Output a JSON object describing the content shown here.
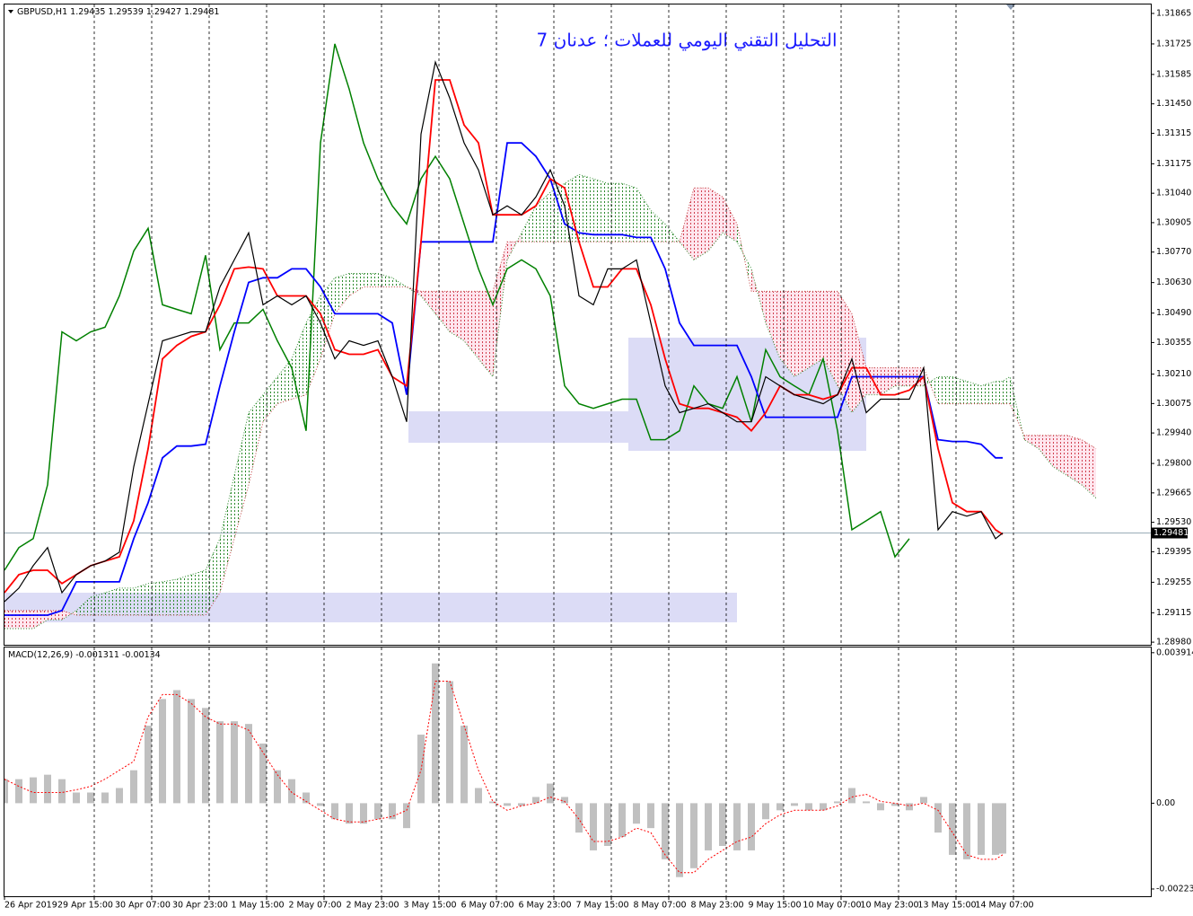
{
  "chart_data": [
    {
      "type": "ichimoku",
      "symbol": "GBPUSD,H1",
      "ohlc": [
        1.29435,
        1.29539,
        1.29427,
        1.29481
      ],
      "title": "التحليل التقني اليومي للعملات ؛ عدنان 7",
      "x": [
        0,
        4,
        8,
        12,
        16,
        20,
        24,
        28,
        32,
        36,
        40,
        44,
        48,
        52,
        56,
        60,
        64,
        68,
        72,
        76,
        80,
        84,
        88,
        92,
        96,
        100,
        104,
        108,
        112,
        116,
        120,
        124,
        128,
        132,
        136,
        140,
        144,
        148,
        152,
        156,
        160,
        164,
        168,
        172,
        176,
        180,
        184,
        188,
        192,
        196,
        200,
        204,
        208,
        212,
        216,
        220,
        224,
        228,
        232,
        236,
        240,
        244,
        248,
        252,
        256,
        260,
        264,
        268,
        272,
        276,
        278,
        280,
        284,
        288,
        292,
        296,
        300,
        304
      ],
      "ylim": [
        1.28968,
        1.31906
      ],
      "yticks": [
        1.31865,
        1.31725,
        1.31585,
        {
          "value": 1.3145,
          "label": "1.31450"
        },
        1.31315,
        1.31175,
        {
          "value": 1.3104,
          "label": "1.31040"
        },
        1.30905,
        {
          "value": 1.3077,
          "label": "1.30770"
        },
        {
          "value": 1.3063,
          "label": "1.30630"
        },
        {
          "value": 1.3049,
          "label": "1.30490"
        },
        1.30355,
        {
          "value": 1.3021,
          "label": "1.30210"
        },
        1.30075,
        {
          "value": 1.2994,
          "label": "1.29940"
        },
        {
          "value": 1.298,
          "label": "1.29800"
        },
        1.29665,
        {
          "value": 1.2953,
          "label": "1.29530"
        },
        1.29395,
        1.29255,
        1.29115,
        {
          "value": 1.2898,
          "label": "1.28980"
        }
      ],
      "grid": "x",
      "series": [
        {
          "kind": "price",
          "color": "#000000",
          "values": [
            1.29166,
            1.29228,
            1.29331,
            1.29414,
            1.29207,
            1.2929,
            1.29331,
            1.29352,
            1.29393,
            1.29785,
            1.30074,
            1.30363,
            1.30383,
            1.30404,
            1.30404,
            1.3061,
            1.30734,
            1.30858,
            1.30528,
            1.30569,
            1.30528,
            1.30569,
            1.30445,
            1.3028,
            1.30363,
            1.30342,
            1.30363,
            1.30198,
            1.29991,
            1.31312,
            1.31642,
            1.31477,
            1.31271,
            1.31147,
            1.30941,
            1.30982,
            1.30941,
            1.31023,
            1.31147,
            1.30982,
            1.30569,
            1.30528,
            1.30693,
            1.30693,
            1.30734,
            1.30445,
            1.30156,
            1.30033,
            1.30053,
            1.30074,
            1.30033,
            1.29991,
            1.29991,
            1.30198,
            1.30156,
            1.30115,
            1.30095,
            1.30074,
            1.30115,
            1.3028,
            1.30033,
            1.30095,
            1.30095,
            1.30095,
            1.30239,
            1.29496,
            1.29579,
            1.29558,
            1.29579,
            1.29455,
            1.29481,
            null,
            null,
            null,
            null,
            null,
            null,
            null
          ]
        },
        {
          "kind": "tenkan",
          "color": "#ff0000",
          "values": [
            1.29207,
            1.2929,
            1.2931,
            1.2931,
            1.29249,
            1.2929,
            1.29331,
            1.29352,
            1.29372,
            1.29537,
            1.29868,
            1.3028,
            1.30342,
            1.30383,
            1.30404,
            1.30528,
            1.30693,
            1.30701,
            1.30693,
            1.30569,
            1.30569,
            1.30569,
            1.30487,
            1.30322,
            1.30301,
            1.30301,
            1.30322,
            1.30198,
            1.30156,
            1.30817,
            1.3156,
            1.3156,
            1.31353,
            1.31271,
            1.30941,
            1.30941,
            1.30941,
            1.30982,
            1.31106,
            1.31064,
            1.30817,
            1.3061,
            1.3061,
            1.30693,
            1.30693,
            1.30528,
            1.3028,
            1.30074,
            1.30053,
            1.30053,
            1.30033,
            1.30012,
            1.2995,
            1.30033,
            1.30156,
            1.30115,
            1.30115,
            1.30095,
            1.30115,
            1.30239,
            1.30239,
            1.30115,
            1.30115,
            1.30136,
            1.30198,
            1.29868,
            1.2962,
            1.29579,
            1.29579,
            1.29496,
            1.29475,
            null,
            null,
            null,
            null,
            null,
            null,
            null
          ]
        },
        {
          "kind": "kijun",
          "color": "#0000ff",
          "values": [
            1.29104,
            1.29104,
            1.29104,
            1.29104,
            1.29125,
            1.29257,
            1.29257,
            1.29257,
            1.29257,
            1.29455,
            1.2962,
            1.29826,
            1.2988,
            1.2988,
            1.29888,
            1.30156,
            1.30404,
            1.30631,
            1.30652,
            1.30652,
            1.30693,
            1.30693,
            1.3061,
            1.30487,
            1.30487,
            1.30487,
            1.30487,
            1.30445,
            1.30115,
            1.30817,
            1.30817,
            1.30817,
            1.30817,
            1.30817,
            1.30817,
            1.31271,
            1.31271,
            1.31209,
            1.31106,
            1.30899,
            1.30858,
            1.3085,
            1.3085,
            1.3085,
            1.30837,
            1.30837,
            1.30693,
            1.30445,
            1.30342,
            1.30342,
            1.30342,
            1.30342,
            1.30198,
            1.30012,
            1.30012,
            1.30012,
            1.30012,
            1.30012,
            1.30012,
            1.30198,
            1.30198,
            1.30198,
            1.30198,
            1.30198,
            1.30198,
            1.29909,
            1.29901,
            1.29901,
            1.29888,
            1.29826,
            1.29826,
            null,
            null,
            null,
            null,
            null,
            null,
            null
          ]
        },
        {
          "kind": "chikou",
          "color": "#008000",
          "values": [
            1.2931,
            1.29414,
            1.29455,
            1.29702,
            1.30404,
            1.30363,
            1.30404,
            1.30425,
            1.30569,
            1.30775,
            1.30879,
            1.30528,
            1.30507,
            1.30487,
            1.30755,
            1.30322,
            1.30445,
            1.30445,
            1.30507,
            1.30363,
            1.30239,
            1.2995,
            1.31271,
            1.31725,
            1.31518,
            1.31271,
            1.31106,
            1.30982,
            1.30899,
            1.31106,
            1.31209,
            1.31106,
            1.30899,
            1.30693,
            1.30528,
            1.30693,
            1.30734,
            1.30693,
            1.30569,
            1.30156,
            1.30074,
            1.30053,
            1.30074,
            1.30095,
            1.30095,
            1.29909,
            1.29909,
            1.2995,
            1.30156,
            1.30074,
            1.30053,
            1.30198,
            1.29991,
            1.30322,
            1.30198,
            1.30156,
            1.30115,
            1.3028,
            1.2995,
            1.29496,
            1.29537,
            1.29579,
            1.29372,
            1.29455,
            null,
            null,
            null,
            null,
            null,
            null,
            null,
            null,
            null,
            null,
            null,
            null,
            null,
            null
          ]
        },
        {
          "kind": "span_a",
          "color": "#2e8b2e",
          "values": [
            1.29042,
            1.29042,
            1.29042,
            1.29083,
            1.29083,
            1.29125,
            1.29187,
            1.29207,
            1.29228,
            1.29228,
            1.29249,
            1.29257,
            1.29269,
            1.2929,
            1.2931,
            1.29455,
            1.29744,
            1.30033,
            1.30115,
            1.30198,
            1.3028,
            1.30445,
            1.30569,
            1.30652,
            1.30672,
            1.30672,
            1.30672,
            1.30652,
            1.3061,
            1.30569,
            1.30487,
            1.30404,
            1.30363,
            1.3028,
            1.30198,
            1.30734,
            1.30858,
            1.30982,
            1.31044,
            1.31085,
            1.31126,
            1.31106,
            1.31085,
            1.31085,
            1.31064,
            1.30961,
            1.30899,
            1.30817,
            1.30734,
            1.30775,
            1.30858,
            1.30817,
            1.30693,
            1.30445,
            1.3028,
            1.30198,
            1.30239,
            1.3028,
            1.30156,
            1.30033,
            1.30115,
            1.30115,
            1.30156,
            1.30156,
            1.30156,
            1.30198,
            1.30198,
            1.30177,
            1.30156,
            1.30177,
            1.30177,
            1.30198,
            1.29909,
            1.29868,
            1.29785,
            1.29744,
            1.29702,
            1.29641
          ]
        },
        {
          "kind": "span_b",
          "color": "#c04040",
          "values": [
            1.29125,
            1.29125,
            1.29125,
            1.29125,
            1.29125,
            1.29104,
            1.29104,
            1.29104,
            1.29104,
            1.29104,
            1.29104,
            1.29104,
            1.29104,
            1.29104,
            1.29104,
            1.29207,
            1.29455,
            1.29702,
            1.29991,
            1.30074,
            1.30095,
            1.30115,
            1.3028,
            1.30487,
            1.30569,
            1.3061,
            1.3061,
            1.3061,
            1.3061,
            1.3059,
            1.3059,
            1.3059,
            1.3059,
            1.3059,
            1.3059,
            1.30817,
            1.30817,
            1.30817,
            1.30817,
            1.30817,
            1.30817,
            1.30817,
            1.30817,
            1.30817,
            1.30817,
            1.30817,
            1.30817,
            1.30817,
            1.31064,
            1.31064,
            1.31023,
            1.30899,
            1.3059,
            1.3059,
            1.3059,
            1.3059,
            1.3059,
            1.3059,
            1.3059,
            1.30487,
            1.30239,
            1.30239,
            1.30239,
            1.30239,
            1.30239,
            1.30074,
            1.30074,
            1.30074,
            1.30074,
            1.30074,
            1.30074,
            1.30074,
            1.29929,
            1.29929,
            1.29929,
            1.29929,
            1.29909,
            1.29868
          ]
        }
      ]
    },
    {
      "type": "macd",
      "label": "MACD(12,26,9)",
      "last": [
        -0.001311,
        -0.00134
      ],
      "x": [
        0,
        4,
        8,
        12,
        16,
        20,
        24,
        28,
        32,
        36,
        40,
        44,
        48,
        52,
        56,
        60,
        64,
        68,
        72,
        76,
        80,
        84,
        88,
        92,
        96,
        100,
        104,
        108,
        112,
        116,
        120,
        124,
        128,
        132,
        136,
        140,
        144,
        148,
        152,
        156,
        160,
        164,
        168,
        172,
        176,
        180,
        184,
        188,
        192,
        196,
        200,
        204,
        208,
        212,
        216,
        220,
        224,
        228,
        232,
        236,
        240,
        244,
        248,
        252,
        256,
        260,
        264,
        268,
        272,
        276,
        278
      ],
      "xlim": [
        0,
        319.25
      ],
      "xticks": [
        {
          "value": 0,
          "label": "26 Apr 2019"
        },
        {
          "value": 25,
          "label": "29 Apr 15:00"
        },
        {
          "value": 41,
          "label": "30 Apr 07:00"
        },
        {
          "value": 57,
          "label": "30 Apr 23:00"
        },
        {
          "value": 73,
          "label": "1 May 15:00"
        },
        {
          "value": 89,
          "label": "2 May 07:00"
        },
        {
          "value": 105,
          "label": "2 May 23:00"
        },
        {
          "value": 121,
          "label": "3 May 15:00"
        },
        {
          "value": 137,
          "label": "6 May 07:00"
        },
        {
          "value": 153,
          "label": "6 May 23:00"
        },
        {
          "value": 169,
          "label": "7 May 15:00"
        },
        {
          "value": 185,
          "label": "8 May 07:00"
        },
        {
          "value": 201,
          "label": "8 May 23:00"
        },
        {
          "value": 217,
          "label": "9 May 15:00"
        },
        {
          "value": 233,
          "label": "10 May 07:00"
        },
        {
          "value": 249,
          "label": "10 May 23:00"
        },
        {
          "value": 265,
          "label": "13 May 15:00"
        },
        {
          "value": 281,
          "label": "14 May 07:00"
        }
      ],
      "ylim": [
        -0.00242,
        0.00405
      ],
      "yticks": [
        0.003914,
        {
          "value": 0,
          "label": "0.00"
        },
        -0.002232
      ],
      "series": [
        {
          "kind": "histogram",
          "color": "#c0c0c0",
          "values": [
            0.000625,
            0.000625,
            0.000672,
            0.000741,
            0.000625,
            0.000278,
            0.000278,
            0.000278,
            0.000394,
            0.000857,
            0.002015,
            0.00271,
            0.002941,
            0.00271,
            0.002478,
            0.002131,
            0.002131,
            0.002061,
            0.001552,
            0.000857,
            0.000625,
            0.000278,
            -6.9e-05,
            -0.000417,
            -0.000533,
            -0.000533,
            -0.000417,
            -0.000417,
            -0.000648,
            0.001783,
            0.003636,
            0.003173,
            0.002015,
            0.000394,
            4.6e-05,
            -6.9e-05,
            -6.9e-05,
            0.000162,
            0.00051,
            0.000162,
            -0.000764,
            -0.001227,
            -0.001112,
            -0.00088,
            -0.000533,
            -0.000648,
            -0.001459,
            -0.001922,
            -0.001691,
            -0.001227,
            -0.001112,
            -0.001227,
            -0.001227,
            -0.000417,
            -0.000185,
            -6.9e-05,
            -0.000185,
            -0.000185,
            4.6e-05,
            0.000394,
            4.6e-05,
            -0.000185,
            -6.9e-05,
            -0.000185,
            0.000162,
            -0.000764,
            -0.001343,
            -0.001459,
            -0.001343,
            -0.001343,
            -0.001311
          ]
        },
        {
          "kind": "signal",
          "color": "#ff0000",
          "values": [
            0.000625,
            0.00044,
            0.000278,
            0.000278,
            0.000278,
            0.000347,
            0.00044,
            0.000625,
            0.000857,
            0.001089,
            0.002247,
            0.002826,
            0.002826,
            0.002594,
            0.002247,
            0.002061,
            0.002061,
            0.001899,
            0.00132,
            0.000741,
            0.000278,
            4.6e-05,
            -0.000185,
            -0.000417,
            -0.000486,
            -0.000486,
            -0.000417,
            -0.000347,
            -0.000185,
            0.000857,
            0.003173,
            0.003173,
            0.002015,
            0.000857,
            4.6e-05,
            -0.000185,
            -6.9e-05,
            0,
            0.000162,
            4.6e-05,
            -0.000417,
            -0.000996,
            -0.000996,
            -0.00088,
            -0.000648,
            -0.000764,
            -0.001343,
            -0.001806,
            -0.001806,
            -0.001459,
            -0.001227,
            -0.000996,
            -0.00088,
            -0.000533,
            -0.000301,
            -0.000185,
            -0.000185,
            -0.000185,
            -6.9e-05,
            0.000162,
            0.000232,
            4.6e-05,
            0,
            -6.9e-05,
            0,
            -0.000185,
            -0.000764,
            -0.001343,
            -0.001459,
            -0.001459,
            -0.00134
          ]
        }
      ]
    }
  ]
}
